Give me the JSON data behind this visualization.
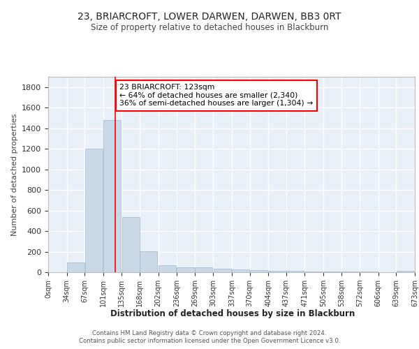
{
  "title": "23, BRIARCROFT, LOWER DARWEN, DARWEN, BB3 0RT",
  "subtitle": "Size of property relative to detached houses in Blackburn",
  "xlabel": "Distribution of detached houses by size in Blackburn",
  "ylabel": "Number of detached properties",
  "bar_color": "#c9d9e8",
  "bar_edge_color": "#a0b8d0",
  "background_color": "#eaf0f7",
  "grid_color": "white",
  "bins_left": [
    0,
    34,
    67,
    101,
    135,
    168,
    202,
    236,
    269,
    303,
    337,
    370,
    404,
    437,
    471,
    505,
    538,
    572,
    606,
    639
  ],
  "bin_width": 33,
  "bar_heights": [
    0,
    95,
    1200,
    1480,
    535,
    205,
    70,
    50,
    45,
    35,
    25,
    20,
    15,
    12,
    10,
    8,
    5,
    5,
    3,
    15
  ],
  "property_size": 123,
  "red_line_x": 123,
  "annotation_text": "23 BRIARCROFT: 123sqm\n← 64% of detached houses are smaller (2,340)\n36% of semi-detached houses are larger (1,304) →",
  "annotation_box_color": "white",
  "annotation_box_edge": "red",
  "ylim": [
    0,
    1900
  ],
  "yticks": [
    0,
    200,
    400,
    600,
    800,
    1000,
    1200,
    1400,
    1600,
    1800
  ],
  "xlim": [
    0,
    673
  ],
  "tick_labels": [
    "0sqm",
    "34sqm",
    "67sqm",
    "101sqm",
    "135sqm",
    "168sqm",
    "202sqm",
    "236sqm",
    "269sqm",
    "303sqm",
    "337sqm",
    "370sqm",
    "404sqm",
    "437sqm",
    "471sqm",
    "505sqm",
    "538sqm",
    "572sqm",
    "606sqm",
    "639sqm",
    "673sqm"
  ],
  "tick_positions": [
    0,
    34,
    67,
    101,
    135,
    168,
    202,
    236,
    269,
    303,
    337,
    370,
    404,
    437,
    471,
    505,
    538,
    572,
    606,
    639,
    673
  ],
  "footer_line1": "Contains HM Land Registry data © Crown copyright and database right 2024.",
  "footer_line2": "Contains public sector information licensed under the Open Government Licence v3.0."
}
